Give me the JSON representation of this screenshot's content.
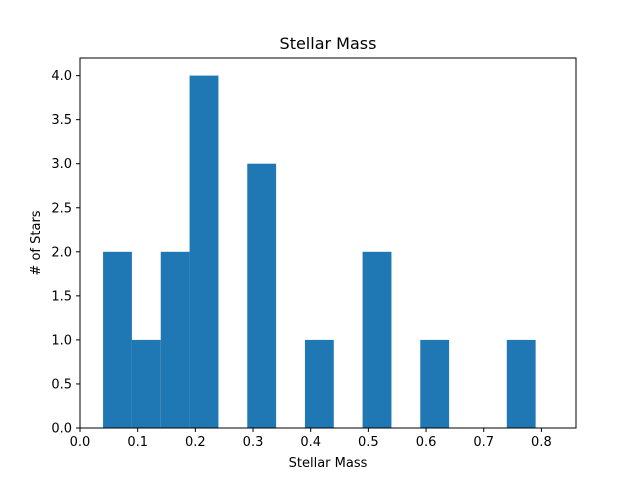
{
  "chart_data": {
    "type": "bar",
    "title": "Stellar Mass",
    "xlabel": "Stellar Mass",
    "ylabel": "# of Stars",
    "bin_start": 0.04,
    "bin_width": 0.05,
    "counts": [
      2,
      1,
      2,
      4,
      0,
      3,
      0,
      1,
      0,
      2,
      0,
      1,
      0,
      0,
      1
    ],
    "xlim": [
      0.0,
      0.86
    ],
    "ylim": [
      0.0,
      4.2
    ],
    "xticks": [
      0.0,
      0.1,
      0.2,
      0.3,
      0.4,
      0.5,
      0.6,
      0.7,
      0.8
    ],
    "xtick_labels": [
      "0.0",
      "0.1",
      "0.2",
      "0.3",
      "0.4",
      "0.5",
      "0.6",
      "0.7",
      "0.8"
    ],
    "yticks": [
      0.0,
      0.5,
      1.0,
      1.5,
      2.0,
      2.5,
      3.0,
      3.5,
      4.0
    ],
    "ytick_labels": [
      "0.0",
      "0.5",
      "1.0",
      "1.5",
      "2.0",
      "2.5",
      "3.0",
      "3.5",
      "4.0"
    ],
    "bar_color": "#1f77b4",
    "grid": false,
    "legend": false
  }
}
